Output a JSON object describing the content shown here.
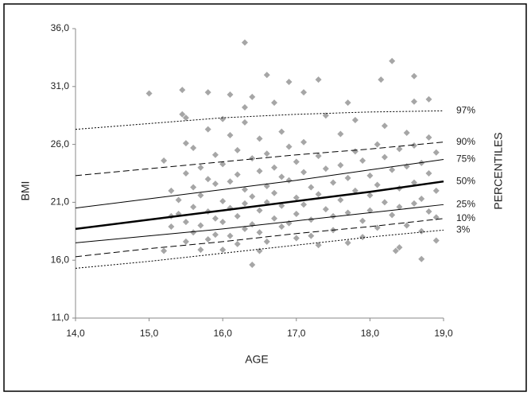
{
  "chart_data": {
    "type": "scatter",
    "xlabel": "AGE",
    "ylabel": "BMI",
    "right_label": "PERCENTILES",
    "xlim": [
      14,
      19
    ],
    "ylim": [
      11,
      36
    ],
    "xticks": [
      {
        "value": 14,
        "label": "14,0"
      },
      {
        "value": 15,
        "label": "15,0"
      },
      {
        "value": 16,
        "label": "16,0"
      },
      {
        "value": 17,
        "label": "17,0"
      },
      {
        "value": 18,
        "label": "18,0"
      },
      {
        "value": 19,
        "label": "19,0"
      }
    ],
    "yticks": [
      {
        "value": 11,
        "label": "11,0"
      },
      {
        "value": 16,
        "label": "16,0"
      },
      {
        "value": 21,
        "label": "21,0"
      },
      {
        "value": 26,
        "label": "26,0"
      },
      {
        "value": 31,
        "label": "31,0"
      },
      {
        "value": 36,
        "label": "36,0"
      }
    ],
    "grid": false,
    "series": [
      {
        "color": "#a6a6a6",
        "x": [
          15.0,
          16.3,
          18.3,
          16.6,
          18.6,
          17.3,
          18.15,
          15.45,
          15.8,
          16.1,
          16.9,
          17.1,
          17.7,
          18.6,
          18.8,
          16.4,
          16.3,
          16.7,
          16.4,
          18.7,
          16.5,
          18.35,
          15.2,
          18.4,
          15.2,
          15.3,
          15.3,
          15.3,
          15.4,
          15.4,
          15.45,
          15.5,
          15.5,
          15.5,
          15.5,
          15.5,
          15.6,
          15.6,
          15.6,
          15.6,
          15.7,
          15.7,
          15.7,
          15.7,
          15.8,
          15.8,
          15.8,
          15.8,
          15.9,
          15.9,
          15.9,
          15.9,
          16.0,
          16.0,
          16.0,
          16.0,
          16.0,
          16.1,
          16.1,
          16.1,
          16.1,
          16.2,
          16.2,
          16.2,
          16.2,
          16.3,
          16.3,
          16.3,
          16.3,
          16.4,
          16.4,
          16.4,
          16.5,
          16.5,
          16.5,
          16.5,
          16.6,
          16.6,
          16.6,
          16.6,
          16.7,
          16.7,
          16.7,
          16.8,
          16.8,
          16.8,
          16.8,
          16.9,
          16.9,
          16.9,
          17.0,
          17.0,
          17.0,
          17.0,
          17.1,
          17.1,
          17.1,
          17.2,
          17.2,
          17.2,
          17.3,
          17.3,
          17.3,
          17.4,
          17.4,
          17.4,
          17.5,
          17.5,
          17.5,
          17.6,
          17.6,
          17.6,
          17.7,
          17.7,
          17.7,
          17.8,
          17.8,
          17.8,
          17.9,
          17.9,
          17.9,
          18.0,
          18.0,
          18.0,
          18.1,
          18.1,
          18.1,
          18.2,
          18.2,
          18.2,
          18.3,
          18.3,
          18.4,
          18.4,
          18.4,
          18.5,
          18.5,
          18.5,
          18.6,
          18.6,
          18.6,
          18.7,
          18.7,
          18.7,
          18.8,
          18.8,
          18.8,
          18.9,
          18.9,
          18.9,
          18.9
        ],
        "values": [
          30.4,
          34.8,
          33.2,
          32.0,
          31.9,
          31.6,
          31.6,
          30.7,
          30.5,
          30.3,
          31.4,
          30.5,
          29.6,
          29.7,
          29.9,
          30.1,
          29.2,
          29.6,
          15.6,
          16.1,
          16.8,
          16.8,
          16.8,
          17.1,
          24.6,
          22.0,
          19.8,
          18.9,
          21.2,
          20.0,
          28.6,
          28.3,
          26.1,
          23.5,
          19.3,
          17.6,
          25.7,
          22.3,
          20.6,
          18.4,
          24.0,
          21.6,
          19.0,
          16.9,
          27.3,
          23.0,
          20.2,
          17.8,
          25.1,
          22.6,
          19.6,
          18.2,
          28.2,
          24.3,
          21.1,
          19.3,
          16.9,
          26.8,
          22.8,
          20.5,
          18.1,
          25.5,
          23.4,
          19.8,
          17.4,
          27.9,
          22.1,
          20.9,
          18.7,
          24.8,
          21.5,
          19.1,
          26.5,
          23.7,
          20.3,
          18.4,
          25.2,
          22.4,
          21.0,
          17.6,
          24.0,
          21.8,
          19.6,
          27.1,
          23.2,
          20.7,
          18.9,
          25.8,
          22.9,
          19.2,
          24.5,
          21.4,
          20.0,
          17.9,
          26.2,
          23.6,
          20.8,
          22.3,
          19.5,
          18.1,
          25.0,
          21.7,
          17.3,
          28.5,
          23.9,
          20.4,
          22.7,
          19.8,
          18.6,
          26.9,
          24.2,
          21.2,
          23.1,
          20.1,
          17.5,
          28.1,
          25.4,
          22.0,
          24.6,
          19.4,
          18.0,
          23.3,
          21.6,
          20.3,
          26.0,
          22.5,
          18.8,
          27.6,
          24.9,
          21.0,
          23.8,
          19.9,
          25.6,
          22.2,
          20.6,
          27.0,
          24.1,
          19.0,
          25.9,
          22.7,
          20.9,
          24.4,
          21.3,
          18.5,
          26.6,
          23.5,
          20.2,
          25.3,
          22.0,
          19.7,
          17.7
        ]
      }
    ],
    "percentile_x": [
      14,
      15,
      16,
      17,
      18,
      19
    ],
    "percentiles": [
      {
        "name": "97%",
        "dash": "2,2",
        "width": 1,
        "values": [
          27.3,
          27.8,
          28.3,
          28.6,
          28.8,
          28.9
        ]
      },
      {
        "name": "90%",
        "dash": "8,4",
        "width": 1,
        "values": [
          23.3,
          23.9,
          24.5,
          25.1,
          25.6,
          26.2
        ]
      },
      {
        "name": "75%",
        "dash": "none",
        "width": 1,
        "values": [
          20.5,
          21.3,
          22.1,
          22.9,
          23.8,
          24.7
        ]
      },
      {
        "name": "50%",
        "dash": "none",
        "width": 2.5,
        "values": [
          18.7,
          19.5,
          20.3,
          21.1,
          21.9,
          22.8
        ]
      },
      {
        "name": "25%",
        "dash": "none",
        "width": 1,
        "values": [
          17.5,
          18.1,
          18.7,
          19.4,
          20.1,
          20.8
        ]
      },
      {
        "name": "10%",
        "dash": "8,4",
        "width": 1,
        "values": [
          16.3,
          17.0,
          17.6,
          18.3,
          18.9,
          19.6
        ]
      },
      {
        "name": "3%",
        "dash": "2,2",
        "width": 1,
        "values": [
          15.3,
          15.9,
          16.6,
          17.3,
          18.0,
          18.6
        ]
      }
    ]
  }
}
